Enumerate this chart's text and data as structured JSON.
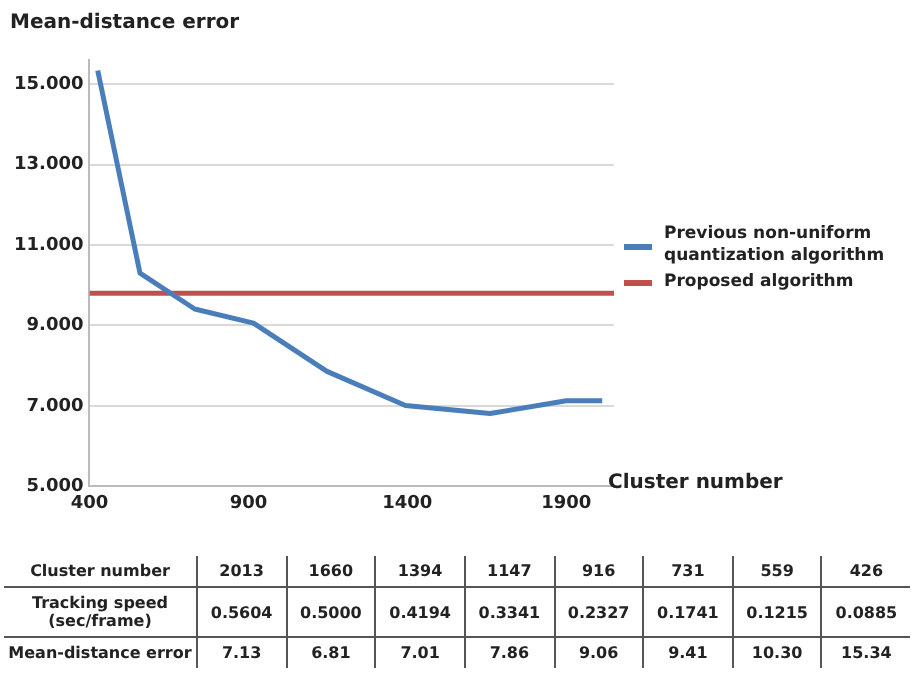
{
  "chart_data": [
    {
      "type": "line",
      "xlabel": "Cluster number",
      "ylabel": "Mean-distance error",
      "xlim": [
        400,
        2050
      ],
      "xticks": [
        400,
        900,
        1400,
        1900
      ],
      "ylim": [
        5,
        15.6
      ],
      "yticks": [
        {
          "value": 5,
          "label": "5.000"
        },
        {
          "value": 7,
          "label": "7.000"
        },
        {
          "value": 9,
          "label": "9.000"
        },
        {
          "value": 11,
          "label": "11.000"
        },
        {
          "value": 13,
          "label": "13.000"
        },
        {
          "value": 15,
          "label": "15.000"
        }
      ],
      "grid": "y",
      "legend": "right",
      "marker": "none",
      "series": [
        {
          "name": "Previous non-uniform quantization algorithm",
          "color": "#4a7ebb",
          "x": [
            426,
            559,
            731,
            916,
            1147,
            1394,
            1660,
            1900,
            2013
          ],
          "values": [
            15.34,
            10.3,
            9.41,
            9.06,
            7.86,
            7.01,
            6.81,
            7.13,
            7.13
          ]
        },
        {
          "name": "Proposed algorithm",
          "color": "#c0504d",
          "x": [
            400,
            2050
          ],
          "values": [
            9.8,
            9.8
          ]
        }
      ]
    },
    {
      "type": "other",
      "xlabel": "Cluster number",
      "categories": [
        "2013",
        "1660",
        "1394",
        "1147",
        "916",
        "731",
        "559",
        "426"
      ],
      "series": [
        {
          "name": "Tracking speed (sec/frame)",
          "values": [
            0.5604,
            0.5,
            0.4194,
            0.3341,
            0.2327,
            0.1741,
            0.1215,
            0.0885
          ],
          "value_labels": [
            "0.5604",
            "0.5000",
            "0.4194",
            "0.3341",
            "0.2327",
            "0.1741",
            "0.1215",
            "0.0885"
          ]
        },
        {
          "name": "Mean-distance error",
          "values": [
            7.13,
            6.81,
            7.01,
            7.86,
            9.06,
            9.41,
            10.3,
            15.34
          ],
          "value_labels": [
            "7.13",
            "6.81",
            "7.01",
            "7.86",
            "9.06",
            "9.41",
            "10.30",
            "15.34"
          ]
        }
      ]
    }
  ]
}
